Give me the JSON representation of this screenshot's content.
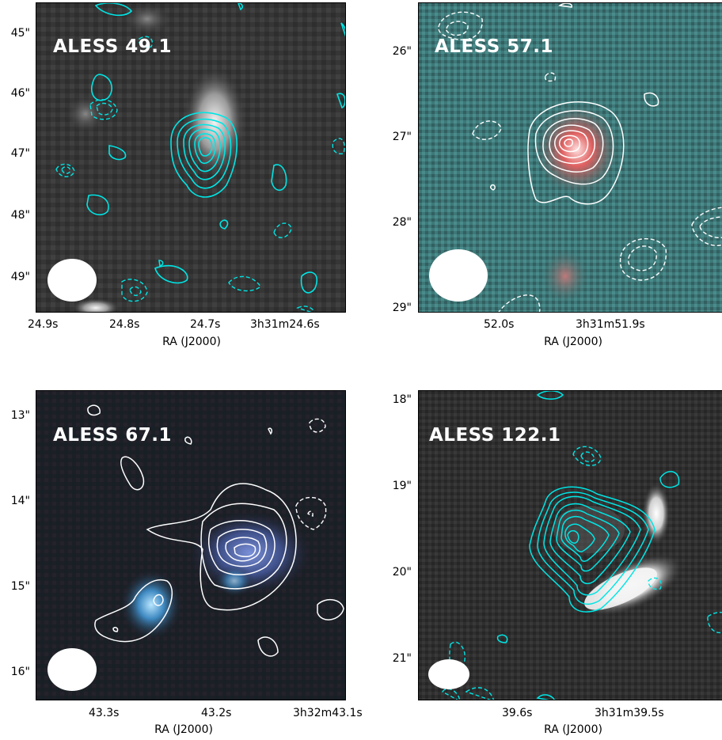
{
  "panels": [
    {
      "title": "ALESS 49.1",
      "ra_ticks": [
        "24.9s",
        "24.8s",
        "24.7s",
        "3h31m24.6s"
      ],
      "dec_ticks": [
        "45\"",
        "46\"",
        "47\"",
        "48\"",
        "49\""
      ],
      "xlabel": "RA (J2000)",
      "contour_color": "#00e5e5",
      "background": "grayscale"
    },
    {
      "title": "ALESS 57.1",
      "ra_ticks": [
        "52.0s",
        "3h31m51.9s"
      ],
      "dec_ticks": [
        "26\"",
        "27\"",
        "28\"",
        "29\""
      ],
      "xlabel": "RA (J2000)",
      "contour_color": "#ffffff",
      "background": "cyan-red"
    },
    {
      "title": "ALESS 67.1",
      "ra_ticks": [
        "43.3s",
        "43.2s",
        "3h32m43.1s"
      ],
      "dec_ticks": [
        "13\"",
        "14\"",
        "15\"",
        "16\""
      ],
      "xlabel": "RA (J2000)",
      "contour_color": "#ffffff",
      "background": "rgb-dark"
    },
    {
      "title": "ALESS 122.1",
      "ra_ticks": [
        "39.6s",
        "3h31m39.5s"
      ],
      "dec_ticks": [
        "18\"",
        "19\"",
        "20\"",
        "21\""
      ],
      "xlabel": "RA (J2000)",
      "contour_color": "#00e5e5",
      "background": "grayscale"
    }
  ]
}
